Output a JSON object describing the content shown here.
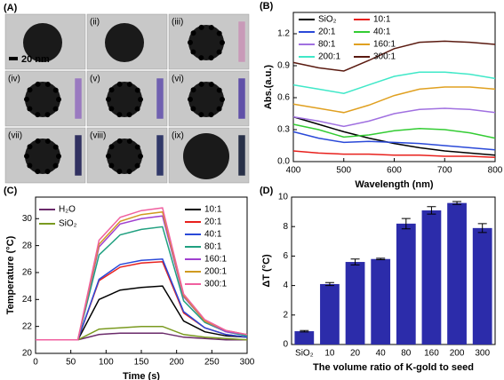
{
  "image_panel": {
    "label": "(A)",
    "scale_bar": "20 nm",
    "captions": [
      "(ii)",
      "(iii)",
      "(iv)",
      "(v)",
      "(vi)",
      "(vii)",
      "(viii)",
      "(ix)"
    ]
  },
  "chart_data": [
    {
      "type": "line",
      "panel_label": "(B)",
      "xlabel": "Wavelength (nm)",
      "ylabel": "Abs.(a.u.)",
      "x": [
        400,
        450,
        500,
        550,
        600,
        650,
        700,
        750,
        800
      ],
      "xlim": [
        400,
        800
      ],
      "xticks": [
        400,
        500,
        600,
        700,
        800
      ],
      "ylim": [
        0,
        1.4
      ],
      "yticks": [
        {
          "value": 0,
          "label": "0.0"
        },
        0.3,
        0.6,
        0.9,
        1.2
      ],
      "series": [
        {
          "name": "SiO₂",
          "color": "#000000",
          "values": [
            0.42,
            0.35,
            0.28,
            0.22,
            0.17,
            0.13,
            0.1,
            0.08,
            0.06
          ]
        },
        {
          "name": "10:1",
          "color": "#e8201c",
          "values": [
            0.1,
            0.08,
            0.07,
            0.07,
            0.06,
            0.06,
            0.05,
            0.05,
            0.04
          ]
        },
        {
          "name": "20:1",
          "color": "#2a49d8",
          "values": [
            0.28,
            0.22,
            0.18,
            0.19,
            0.18,
            0.17,
            0.15,
            0.13,
            0.11
          ]
        },
        {
          "name": "40:1",
          "color": "#33cc33",
          "values": [
            0.35,
            0.3,
            0.23,
            0.25,
            0.29,
            0.31,
            0.3,
            0.27,
            0.22
          ]
        },
        {
          "name": "80:1",
          "color": "#a070e0",
          "values": [
            0.42,
            0.38,
            0.33,
            0.38,
            0.45,
            0.49,
            0.5,
            0.49,
            0.46
          ]
        },
        {
          "name": "160:1",
          "color": "#e0a020",
          "values": [
            0.54,
            0.5,
            0.46,
            0.53,
            0.62,
            0.68,
            0.7,
            0.7,
            0.68
          ]
        },
        {
          "name": "200:1",
          "color": "#40e8c8",
          "values": [
            0.72,
            0.68,
            0.64,
            0.72,
            0.8,
            0.84,
            0.84,
            0.82,
            0.78
          ]
        },
        {
          "name": "300:1",
          "color": "#5a1a10",
          "values": [
            0.93,
            0.88,
            0.85,
            0.95,
            1.06,
            1.12,
            1.13,
            1.12,
            1.1
          ]
        }
      ]
    },
    {
      "type": "line",
      "panel_label": "(C)",
      "xlabel": "Time (s)",
      "ylabel": "Temperature (°C)",
      "x": [
        0,
        30,
        60,
        90,
        120,
        150,
        180,
        210,
        240,
        270,
        300
      ],
      "xlim": [
        0,
        300
      ],
      "xticks": [
        0,
        50,
        100,
        150,
        200,
        250,
        300
      ],
      "ylim": [
        20,
        31.6
      ],
      "yticks": [
        20,
        22,
        24,
        26,
        28,
        30
      ],
      "series": [
        {
          "name": "H₂O",
          "color": "#6a2a6a",
          "values": [
            21,
            21,
            21,
            21.4,
            21.5,
            21.5,
            21.5,
            21.2,
            21.1,
            21.0,
            21.0
          ]
        },
        {
          "name": "SiO₂",
          "color": "#7a9a20",
          "values": [
            21,
            21,
            21,
            21.8,
            21.9,
            22.0,
            22.0,
            21.4,
            21.2,
            21.1,
            21.0
          ]
        },
        {
          "name": "10:1",
          "color": "#000000",
          "values": [
            21,
            21,
            21,
            24.0,
            24.7,
            24.9,
            25.0,
            22.4,
            21.6,
            21.3,
            21.2
          ]
        },
        {
          "name": "20:1",
          "color": "#e8201c",
          "values": [
            21,
            21,
            21,
            25.4,
            26.4,
            26.7,
            26.8,
            23.0,
            21.9,
            21.4,
            21.2
          ]
        },
        {
          "name": "40:1",
          "color": "#2a49d8",
          "values": [
            21,
            21,
            21,
            25.5,
            26.6,
            26.9,
            27.0,
            23.1,
            21.9,
            21.4,
            21.2
          ]
        },
        {
          "name": "80:1",
          "color": "#20a080",
          "values": [
            21,
            21,
            21,
            27.3,
            28.8,
            29.2,
            29.4,
            23.9,
            22.3,
            21.6,
            21.3
          ]
        },
        {
          "name": "160:1",
          "color": "#a040d0",
          "values": [
            21,
            21,
            21,
            27.9,
            29.6,
            30.0,
            30.2,
            24.2,
            22.4,
            21.6,
            21.4
          ]
        },
        {
          "name": "200:1",
          "color": "#d09a20",
          "values": [
            21,
            21,
            21,
            28.1,
            29.8,
            30.3,
            30.5,
            24.3,
            22.4,
            21.7,
            21.4
          ]
        },
        {
          "name": "300:1",
          "color": "#f060a0",
          "values": [
            21,
            21,
            21,
            28.4,
            30.1,
            30.6,
            30.8,
            24.4,
            22.5,
            21.7,
            21.4
          ]
        }
      ]
    },
    {
      "type": "bar",
      "panel_label": "(D)",
      "xlabel": "The volume ratio of K-gold to seed",
      "ylabel": "ΔT (°C)",
      "categories": [
        "SiO₂",
        "10",
        "20",
        "40",
        "80",
        "160",
        "200",
        "300"
      ],
      "values": [
        0.9,
        4.1,
        5.6,
        5.8,
        8.2,
        9.1,
        9.6,
        7.9
      ],
      "errors": [
        0.05,
        0.1,
        0.2,
        0.05,
        0.35,
        0.25,
        0.1,
        0.3
      ],
      "color": "#2c2caa",
      "ylim": [
        0,
        10
      ],
      "yticks": [
        0,
        2,
        4,
        6,
        8,
        10
      ]
    }
  ]
}
